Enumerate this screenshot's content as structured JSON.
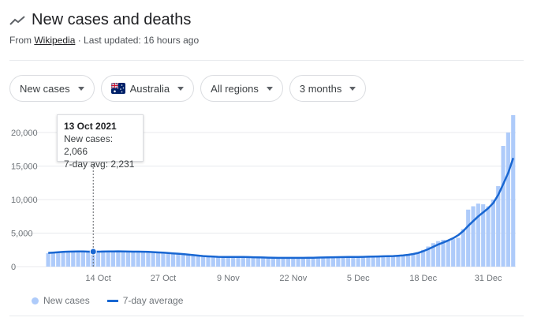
{
  "header": {
    "title": "New cases and deaths",
    "source_prefix": "From ",
    "source_link": "Wikipedia",
    "updated": " · Last updated: 16 hours ago"
  },
  "filters": {
    "metric": "New cases",
    "country": "Australia",
    "region": "All regions",
    "range": "3 months"
  },
  "tooltip": {
    "date": "13 Oct 2021",
    "new_cases": "New cases: 2,066",
    "avg": "7-day avg: 2,231"
  },
  "legend": {
    "bars": "New cases",
    "line": "7-day average"
  },
  "colors": {
    "bar": "#aecbfa",
    "line": "#1967d2",
    "grid": "#e8eaed",
    "axis_text": "#70757a"
  },
  "chart_data": {
    "type": "bar",
    "ylim": [
      0,
      23000
    ],
    "yticks": [
      0,
      5000,
      10000,
      15000,
      20000
    ],
    "ytick_labels": [
      "0",
      "5,000",
      "10,000",
      "15,000",
      "20,000"
    ],
    "x_tick_labels": [
      "14 Oct",
      "27 Oct",
      "9 Nov",
      "22 Nov",
      "5 Dec",
      "18 Dec",
      "31 Dec"
    ],
    "x_tick_index": [
      10,
      23,
      36,
      49,
      62,
      75,
      88
    ],
    "highlight_index": 9,
    "series": [
      {
        "name": "New cases",
        "values": [
          2000,
          2100,
          2200,
          2300,
          2350,
          2250,
          2400,
          2350,
          2300,
          2066,
          2350,
          2400,
          2300,
          2350,
          2300,
          2250,
          2300,
          2350,
          2250,
          2300,
          2200,
          2150,
          2100,
          2050,
          2000,
          1950,
          1950,
          1850,
          1700,
          1600,
          1550,
          1500,
          1450,
          1450,
          1400,
          1450,
          1400,
          1450,
          1400,
          1450,
          1400,
          1350,
          1300,
          1350,
          1300,
          1250,
          1300,
          1350,
          1300,
          1250,
          1350,
          1300,
          1300,
          1350,
          1400,
          1450,
          1500,
          1450,
          1400,
          1450,
          1500,
          1450,
          1400,
          1500,
          1550,
          1500,
          1600,
          1550,
          1600,
          1650,
          1700,
          1750,
          1800,
          1900,
          2000,
          2500,
          3000,
          3500,
          3800,
          4000,
          3900,
          4100,
          4300,
          5600,
          8500,
          9000,
          9400,
          9300,
          9000,
          10000,
          12000,
          18000,
          20000,
          22600
        ]
      },
      {
        "name": "7-day average",
        "values": [
          2050,
          2100,
          2150,
          2200,
          2230,
          2250,
          2260,
          2255,
          2240,
          2231,
          2240,
          2250,
          2260,
          2270,
          2280,
          2260,
          2250,
          2240,
          2230,
          2220,
          2200,
          2160,
          2120,
          2080,
          2030,
          1980,
          1930,
          1870,
          1800,
          1720,
          1650,
          1580,
          1530,
          1490,
          1460,
          1450,
          1440,
          1440,
          1430,
          1430,
          1420,
          1400,
          1380,
          1360,
          1340,
          1320,
          1310,
          1300,
          1300,
          1300,
          1300,
          1310,
          1320,
          1330,
          1350,
          1370,
          1390,
          1400,
          1410,
          1420,
          1430,
          1440,
          1450,
          1460,
          1480,
          1500,
          1520,
          1540,
          1560,
          1580,
          1620,
          1680,
          1760,
          1880,
          2050,
          2300,
          2600,
          2950,
          3300,
          3600,
          3900,
          4250,
          4700,
          5300,
          6100,
          6800,
          7500,
          8100,
          8700,
          9500,
          10700,
          12300,
          14000,
          16200
        ]
      }
    ]
  }
}
